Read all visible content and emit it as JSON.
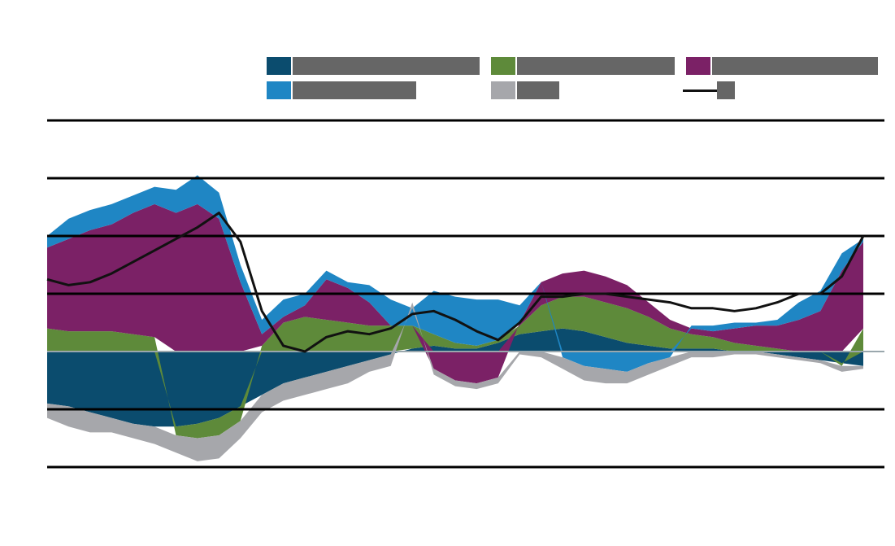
{
  "title": "",
  "source": "",
  "chart_data": {
    "type": "area",
    "title": "",
    "xlabel": "",
    "ylabel": "",
    "ylim": [
      -200,
      400
    ],
    "yticks": [
      -200,
      -100,
      0,
      100,
      200,
      300,
      400
    ],
    "ytick_labels": [
      "",
      "",
      "",
      "",
      "",
      "",
      ""
    ],
    "x": [
      2007.0,
      2007.5,
      2008.0,
      2008.5,
      2009.0,
      2009.5,
      2010.0,
      2010.5,
      2011.0,
      2011.5,
      2012.0,
      2012.5,
      2013.0,
      2013.5,
      2014.0,
      2014.5,
      2015.0,
      2015.5,
      2016.0,
      2016.5,
      2017.0,
      2017.5,
      2018.0,
      2018.5,
      2019.0,
      2019.5,
      2020.0,
      2020.5,
      2021.0,
      2021.5,
      2022.0,
      2022.5,
      2023.0,
      2023.5,
      2024.0,
      2024.5,
      2025.0,
      2025.5,
      2026.0
    ],
    "xtick_positions": [
      2007.5,
      2009.5,
      2011.5,
      2013.5,
      2015.5,
      2017.5,
      2019.5,
      2021.5,
      2023.5
    ],
    "xtick_labels": [
      "",
      "",
      "",
      "",
      "",
      "",
      "",
      "",
      ""
    ],
    "colors": {
      "dark_blue": "#0b4c6e",
      "green": "#5e8a3a",
      "purple": "#7b2166",
      "light_blue": "#1f86c4",
      "grey": "#a6a7ab",
      "line": "#111111",
      "grid": "#000000",
      "zero": "#9aa7ad"
    },
    "legend_placement": "top",
    "series": [
      {
        "color_key": "dark_blue",
        "label": "",
        "values": [
          -90,
          -95,
          -105,
          -115,
          -125,
          -130,
          -130,
          -125,
          -115,
          -95,
          -75,
          -55,
          -45,
          -35,
          -25,
          -15,
          -5,
          5,
          10,
          5,
          5,
          15,
          30,
          35,
          40,
          35,
          25,
          15,
          10,
          5,
          5,
          5,
          0,
          0,
          -5,
          -10,
          -15,
          -20,
          -25
        ]
      },
      {
        "color_key": "green",
        "label": "",
        "values": [
          40,
          35,
          35,
          35,
          30,
          25,
          -15,
          -25,
          -30,
          -25,
          10,
          50,
          60,
          55,
          50,
          45,
          45,
          40,
          20,
          10,
          5,
          5,
          15,
          45,
          55,
          60,
          60,
          60,
          50,
          35,
          25,
          20,
          15,
          10,
          5,
          0,
          0,
          -5,
          40
        ]
      },
      {
        "color_key": "purple",
        "label": "",
        "values": [
          140,
          160,
          175,
          185,
          210,
          230,
          240,
          255,
          230,
          120,
          20,
          10,
          20,
          70,
          60,
          40,
          0,
          0,
          -30,
          -50,
          -55,
          -45,
          5,
          40,
          40,
          45,
          45,
          40,
          25,
          15,
          10,
          10,
          25,
          35,
          40,
          55,
          70,
          140,
          150
        ]
      },
      {
        "color_key": "light_blue",
        "label": "",
        "values": [
          20,
          35,
          35,
          35,
          30,
          30,
          40,
          50,
          45,
          30,
          25,
          30,
          20,
          15,
          10,
          30,
          45,
          30,
          75,
          80,
          80,
          70,
          30,
          0,
          -10,
          -25,
          -30,
          -35,
          -20,
          -10,
          5,
          10,
          10,
          5,
          10,
          30,
          35,
          30,
          5
        ]
      },
      {
        "color_key": "grey",
        "label": "",
        "values": [
          -25,
          -35,
          -35,
          -25,
          -25,
          -30,
          -30,
          -40,
          -40,
          -30,
          -30,
          -30,
          -30,
          -30,
          -30,
          -20,
          -20,
          10,
          -10,
          -10,
          -10,
          -10,
          -5,
          -10,
          -20,
          -25,
          -25,
          -20,
          -20,
          -15,
          -10,
          -10,
          -5,
          -5,
          -5,
          -5,
          -5,
          -10,
          -5
        ]
      }
    ],
    "line": {
      "label": "",
      "values": [
        125,
        115,
        120,
        135,
        155,
        175,
        195,
        215,
        240,
        190,
        70,
        10,
        0,
        25,
        35,
        30,
        40,
        65,
        70,
        55,
        35,
        20,
        50,
        95,
        95,
        100,
        100,
        95,
        90,
        85,
        75,
        75,
        70,
        75,
        85,
        100,
        100,
        130,
        200
      ]
    }
  }
}
